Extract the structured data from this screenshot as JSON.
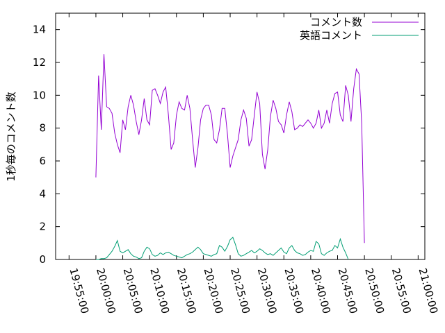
{
  "chart_data": {
    "type": "line",
    "title": "",
    "xlabel": "",
    "ylabel": "1秒毎のコメント数",
    "ylim": [
      0,
      15
    ],
    "yticks": [
      0,
      2,
      4,
      6,
      8,
      10,
      12,
      14
    ],
    "x_ticks": [
      "19:55:00",
      "20:00:00",
      "20:05:00",
      "20:10:00",
      "20:15:00",
      "20:20:00",
      "20:25:00",
      "20:30:00",
      "20:35:00",
      "20:40:00",
      "20:45:00",
      "20:50:00",
      "20:55:00",
      "21:00:00"
    ],
    "xlim": [
      "19:52:30",
      "21:01:15"
    ],
    "grid": false,
    "legend_position": "top-right",
    "series": [
      {
        "name": "コメント数",
        "color": "#9400d3",
        "points": [
          [
            "20:00:00",
            5.0
          ],
          [
            "20:00:30",
            11.2
          ],
          [
            "20:01:00",
            7.9
          ],
          [
            "20:01:30",
            12.5
          ],
          [
            "20:02:00",
            9.3
          ],
          [
            "20:02:30",
            9.2
          ],
          [
            "20:03:00",
            8.9
          ],
          [
            "20:03:30",
            7.7
          ],
          [
            "20:04:00",
            7.0
          ],
          [
            "20:04:30",
            6.5
          ],
          [
            "20:05:00",
            8.5
          ],
          [
            "20:05:30",
            7.9
          ],
          [
            "20:06:00",
            9.3
          ],
          [
            "20:06:30",
            10.0
          ],
          [
            "20:07:00",
            9.4
          ],
          [
            "20:07:30",
            8.4
          ],
          [
            "20:08:00",
            7.6
          ],
          [
            "20:08:30",
            8.5
          ],
          [
            "20:09:00",
            9.8
          ],
          [
            "20:09:30",
            8.5
          ],
          [
            "20:10:00",
            8.2
          ],
          [
            "20:10:30",
            10.3
          ],
          [
            "20:11:00",
            10.4
          ],
          [
            "20:11:30",
            10.0
          ],
          [
            "20:12:00",
            9.5
          ],
          [
            "20:12:30",
            10.2
          ],
          [
            "20:13:00",
            10.5
          ],
          [
            "20:13:30",
            8.8
          ],
          [
            "20:14:00",
            6.7
          ],
          [
            "20:14:30",
            7.1
          ],
          [
            "20:15:00",
            8.8
          ],
          [
            "20:15:30",
            9.6
          ],
          [
            "20:16:00",
            9.2
          ],
          [
            "20:16:30",
            9.1
          ],
          [
            "20:17:00",
            10.0
          ],
          [
            "20:17:30",
            9.2
          ],
          [
            "20:18:00",
            7.3
          ],
          [
            "20:18:30",
            5.6
          ],
          [
            "20:19:00",
            6.8
          ],
          [
            "20:19:30",
            8.5
          ],
          [
            "20:20:00",
            9.2
          ],
          [
            "20:20:30",
            9.4
          ],
          [
            "20:21:00",
            9.4
          ],
          [
            "20:21:30",
            8.8
          ],
          [
            "20:22:00",
            7.3
          ],
          [
            "20:22:30",
            7.1
          ],
          [
            "20:23:00",
            7.9
          ],
          [
            "20:23:30",
            9.2
          ],
          [
            "20:24:00",
            9.2
          ],
          [
            "20:24:30",
            7.6
          ],
          [
            "20:25:00",
            5.6
          ],
          [
            "20:25:30",
            6.3
          ],
          [
            "20:26:00",
            6.8
          ],
          [
            "20:26:30",
            7.3
          ],
          [
            "20:27:00",
            8.5
          ],
          [
            "20:27:30",
            9.1
          ],
          [
            "20:28:00",
            8.6
          ],
          [
            "20:28:30",
            6.9
          ],
          [
            "20:29:00",
            7.3
          ],
          [
            "20:29:30",
            8.8
          ],
          [
            "20:30:00",
            10.2
          ],
          [
            "20:30:30",
            9.5
          ],
          [
            "20:31:00",
            6.4
          ],
          [
            "20:31:30",
            5.5
          ],
          [
            "20:32:00",
            6.7
          ],
          [
            "20:32:30",
            8.7
          ],
          [
            "20:33:00",
            9.7
          ],
          [
            "20:33:30",
            9.2
          ],
          [
            "20:34:00",
            8.4
          ],
          [
            "20:34:30",
            8.2
          ],
          [
            "20:35:00",
            7.7
          ],
          [
            "20:35:30",
            8.8
          ],
          [
            "20:36:00",
            9.6
          ],
          [
            "20:36:30",
            9.0
          ],
          [
            "20:37:00",
            7.9
          ],
          [
            "20:37:30",
            8.0
          ],
          [
            "20:38:00",
            8.2
          ],
          [
            "20:38:30",
            8.1
          ],
          [
            "20:39:00",
            8.3
          ],
          [
            "20:39:30",
            8.5
          ],
          [
            "20:40:00",
            8.3
          ],
          [
            "20:40:30",
            8.0
          ],
          [
            "20:41:00",
            8.3
          ],
          [
            "20:41:30",
            9.1
          ],
          [
            "20:42:00",
            8.0
          ],
          [
            "20:42:30",
            8.3
          ],
          [
            "20:43:00",
            9.1
          ],
          [
            "20:43:30",
            8.3
          ],
          [
            "20:44:00",
            9.5
          ],
          [
            "20:44:30",
            10.1
          ],
          [
            "20:45:00",
            10.2
          ],
          [
            "20:45:30",
            8.8
          ],
          [
            "20:46:00",
            8.4
          ],
          [
            "20:46:30",
            10.6
          ],
          [
            "20:47:00",
            10.0
          ],
          [
            "20:47:30",
            8.4
          ],
          [
            "20:48:00",
            10.4
          ],
          [
            "20:48:30",
            11.6
          ],
          [
            "20:49:00",
            11.3
          ],
          [
            "20:49:30",
            8.3
          ],
          [
            "20:50:00",
            1.0
          ]
        ]
      },
      {
        "name": "英語コメント",
        "color": "#009e73",
        "points": [
          [
            "20:00:00",
            0.0
          ],
          [
            "20:00:30",
            0.0
          ],
          [
            "20:01:00",
            0.05
          ],
          [
            "20:01:30",
            0.05
          ],
          [
            "20:02:00",
            0.1
          ],
          [
            "20:02:30",
            0.3
          ],
          [
            "20:03:00",
            0.5
          ],
          [
            "20:03:30",
            0.8
          ],
          [
            "20:04:00",
            1.15
          ],
          [
            "20:04:30",
            0.5
          ],
          [
            "20:05:00",
            0.4
          ],
          [
            "20:05:30",
            0.5
          ],
          [
            "20:06:00",
            0.6
          ],
          [
            "20:06:30",
            0.35
          ],
          [
            "20:07:00",
            0.2
          ],
          [
            "20:07:30",
            0.15
          ],
          [
            "20:08:00",
            0.05
          ],
          [
            "20:08:30",
            0.1
          ],
          [
            "20:09:00",
            0.5
          ],
          [
            "20:09:30",
            0.75
          ],
          [
            "20:10:00",
            0.65
          ],
          [
            "20:10:30",
            0.3
          ],
          [
            "20:11:00",
            0.2
          ],
          [
            "20:11:30",
            0.25
          ],
          [
            "20:12:00",
            0.4
          ],
          [
            "20:12:30",
            0.3
          ],
          [
            "20:13:00",
            0.4
          ],
          [
            "20:13:30",
            0.45
          ],
          [
            "20:14:00",
            0.35
          ],
          [
            "20:14:30",
            0.25
          ],
          [
            "20:15:00",
            0.2
          ],
          [
            "20:15:30",
            0.15
          ],
          [
            "20:16:00",
            0.1
          ],
          [
            "20:16:30",
            0.2
          ],
          [
            "20:17:00",
            0.3
          ],
          [
            "20:17:30",
            0.35
          ],
          [
            "20:18:00",
            0.45
          ],
          [
            "20:18:30",
            0.6
          ],
          [
            "20:19:00",
            0.75
          ],
          [
            "20:19:30",
            0.6
          ],
          [
            "20:20:00",
            0.35
          ],
          [
            "20:20:30",
            0.3
          ],
          [
            "20:21:00",
            0.25
          ],
          [
            "20:21:30",
            0.2
          ],
          [
            "20:22:00",
            0.3
          ],
          [
            "20:22:30",
            0.35
          ],
          [
            "20:23:00",
            0.85
          ],
          [
            "20:23:30",
            0.75
          ],
          [
            "20:24:00",
            0.5
          ],
          [
            "20:24:30",
            0.8
          ],
          [
            "20:25:00",
            1.2
          ],
          [
            "20:25:30",
            1.35
          ],
          [
            "20:26:00",
            0.9
          ],
          [
            "20:26:30",
            0.35
          ],
          [
            "20:27:00",
            0.2
          ],
          [
            "20:27:30",
            0.25
          ],
          [
            "20:28:00",
            0.35
          ],
          [
            "20:28:30",
            0.45
          ],
          [
            "20:29:00",
            0.55
          ],
          [
            "20:29:30",
            0.4
          ],
          [
            "20:30:00",
            0.5
          ],
          [
            "20:30:30",
            0.65
          ],
          [
            "20:31:00",
            0.55
          ],
          [
            "20:31:30",
            0.4
          ],
          [
            "20:32:00",
            0.3
          ],
          [
            "20:32:30",
            0.35
          ],
          [
            "20:33:00",
            0.25
          ],
          [
            "20:33:30",
            0.4
          ],
          [
            "20:34:00",
            0.55
          ],
          [
            "20:34:30",
            0.7
          ],
          [
            "20:35:00",
            0.45
          ],
          [
            "20:35:30",
            0.35
          ],
          [
            "20:36:00",
            0.7
          ],
          [
            "20:36:30",
            0.85
          ],
          [
            "20:37:00",
            0.55
          ],
          [
            "20:37:30",
            0.4
          ],
          [
            "20:38:00",
            0.35
          ],
          [
            "20:38:30",
            0.25
          ],
          [
            "20:39:00",
            0.3
          ],
          [
            "20:39:30",
            0.45
          ],
          [
            "20:40:00",
            0.55
          ],
          [
            "20:40:30",
            0.5
          ],
          [
            "20:41:00",
            1.1
          ],
          [
            "20:41:30",
            0.95
          ],
          [
            "20:42:00",
            0.35
          ],
          [
            "20:42:30",
            0.25
          ],
          [
            "20:43:00",
            0.4
          ],
          [
            "20:43:30",
            0.5
          ],
          [
            "20:44:00",
            0.55
          ],
          [
            "20:44:30",
            0.85
          ],
          [
            "20:45:00",
            0.7
          ],
          [
            "20:45:30",
            1.25
          ],
          [
            "20:46:00",
            0.75
          ],
          [
            "20:46:30",
            0.4
          ],
          [
            "20:47:00",
            0.0
          ]
        ]
      }
    ]
  }
}
